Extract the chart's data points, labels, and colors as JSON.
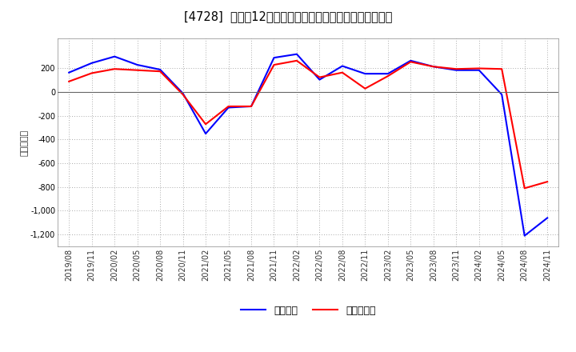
{
  "title": "[4728]  利益だ12か月移動合計の対前年同期増減額の推移",
  "ylabel": "（百万円）",
  "background_color": "#ffffff",
  "plot_bg_color": "#ffffff",
  "grid_color": "#aaaaaa",
  "ylim": [
    -1300,
    450
  ],
  "yticks": [
    200,
    0,
    -200,
    -400,
    -600,
    -800,
    -1000,
    -1200
  ],
  "blue_color": "#0000ff",
  "red_color": "#ff0000",
  "legend_blue": "経常利益",
  "legend_red": "当期純利益",
  "x_labels": [
    "2019/08",
    "2019/11",
    "2020/02",
    "2020/05",
    "2020/08",
    "2020/11",
    "2021/02",
    "2021/05",
    "2021/08",
    "2021/11",
    "2022/02",
    "2022/05",
    "2022/08",
    "2022/11",
    "2023/02",
    "2023/05",
    "2023/08",
    "2023/11",
    "2024/02",
    "2024/05",
    "2024/08",
    "2024/11"
  ],
  "blue_values": [
    165,
    245,
    300,
    230,
    190,
    -10,
    -350,
    -130,
    -120,
    290,
    320,
    105,
    220,
    155,
    155,
    265,
    215,
    185,
    185,
    -20,
    -1210,
    -1060
  ],
  "red_values": [
    90,
    160,
    195,
    185,
    175,
    -20,
    -270,
    -120,
    -120,
    230,
    265,
    125,
    165,
    30,
    135,
    255,
    215,
    195,
    200,
    195,
    -810,
    -755
  ],
  "title_fontsize": 10.5,
  "tick_fontsize": 7,
  "ylabel_fontsize": 8,
  "legend_fontsize": 9,
  "linewidth": 1.5
}
